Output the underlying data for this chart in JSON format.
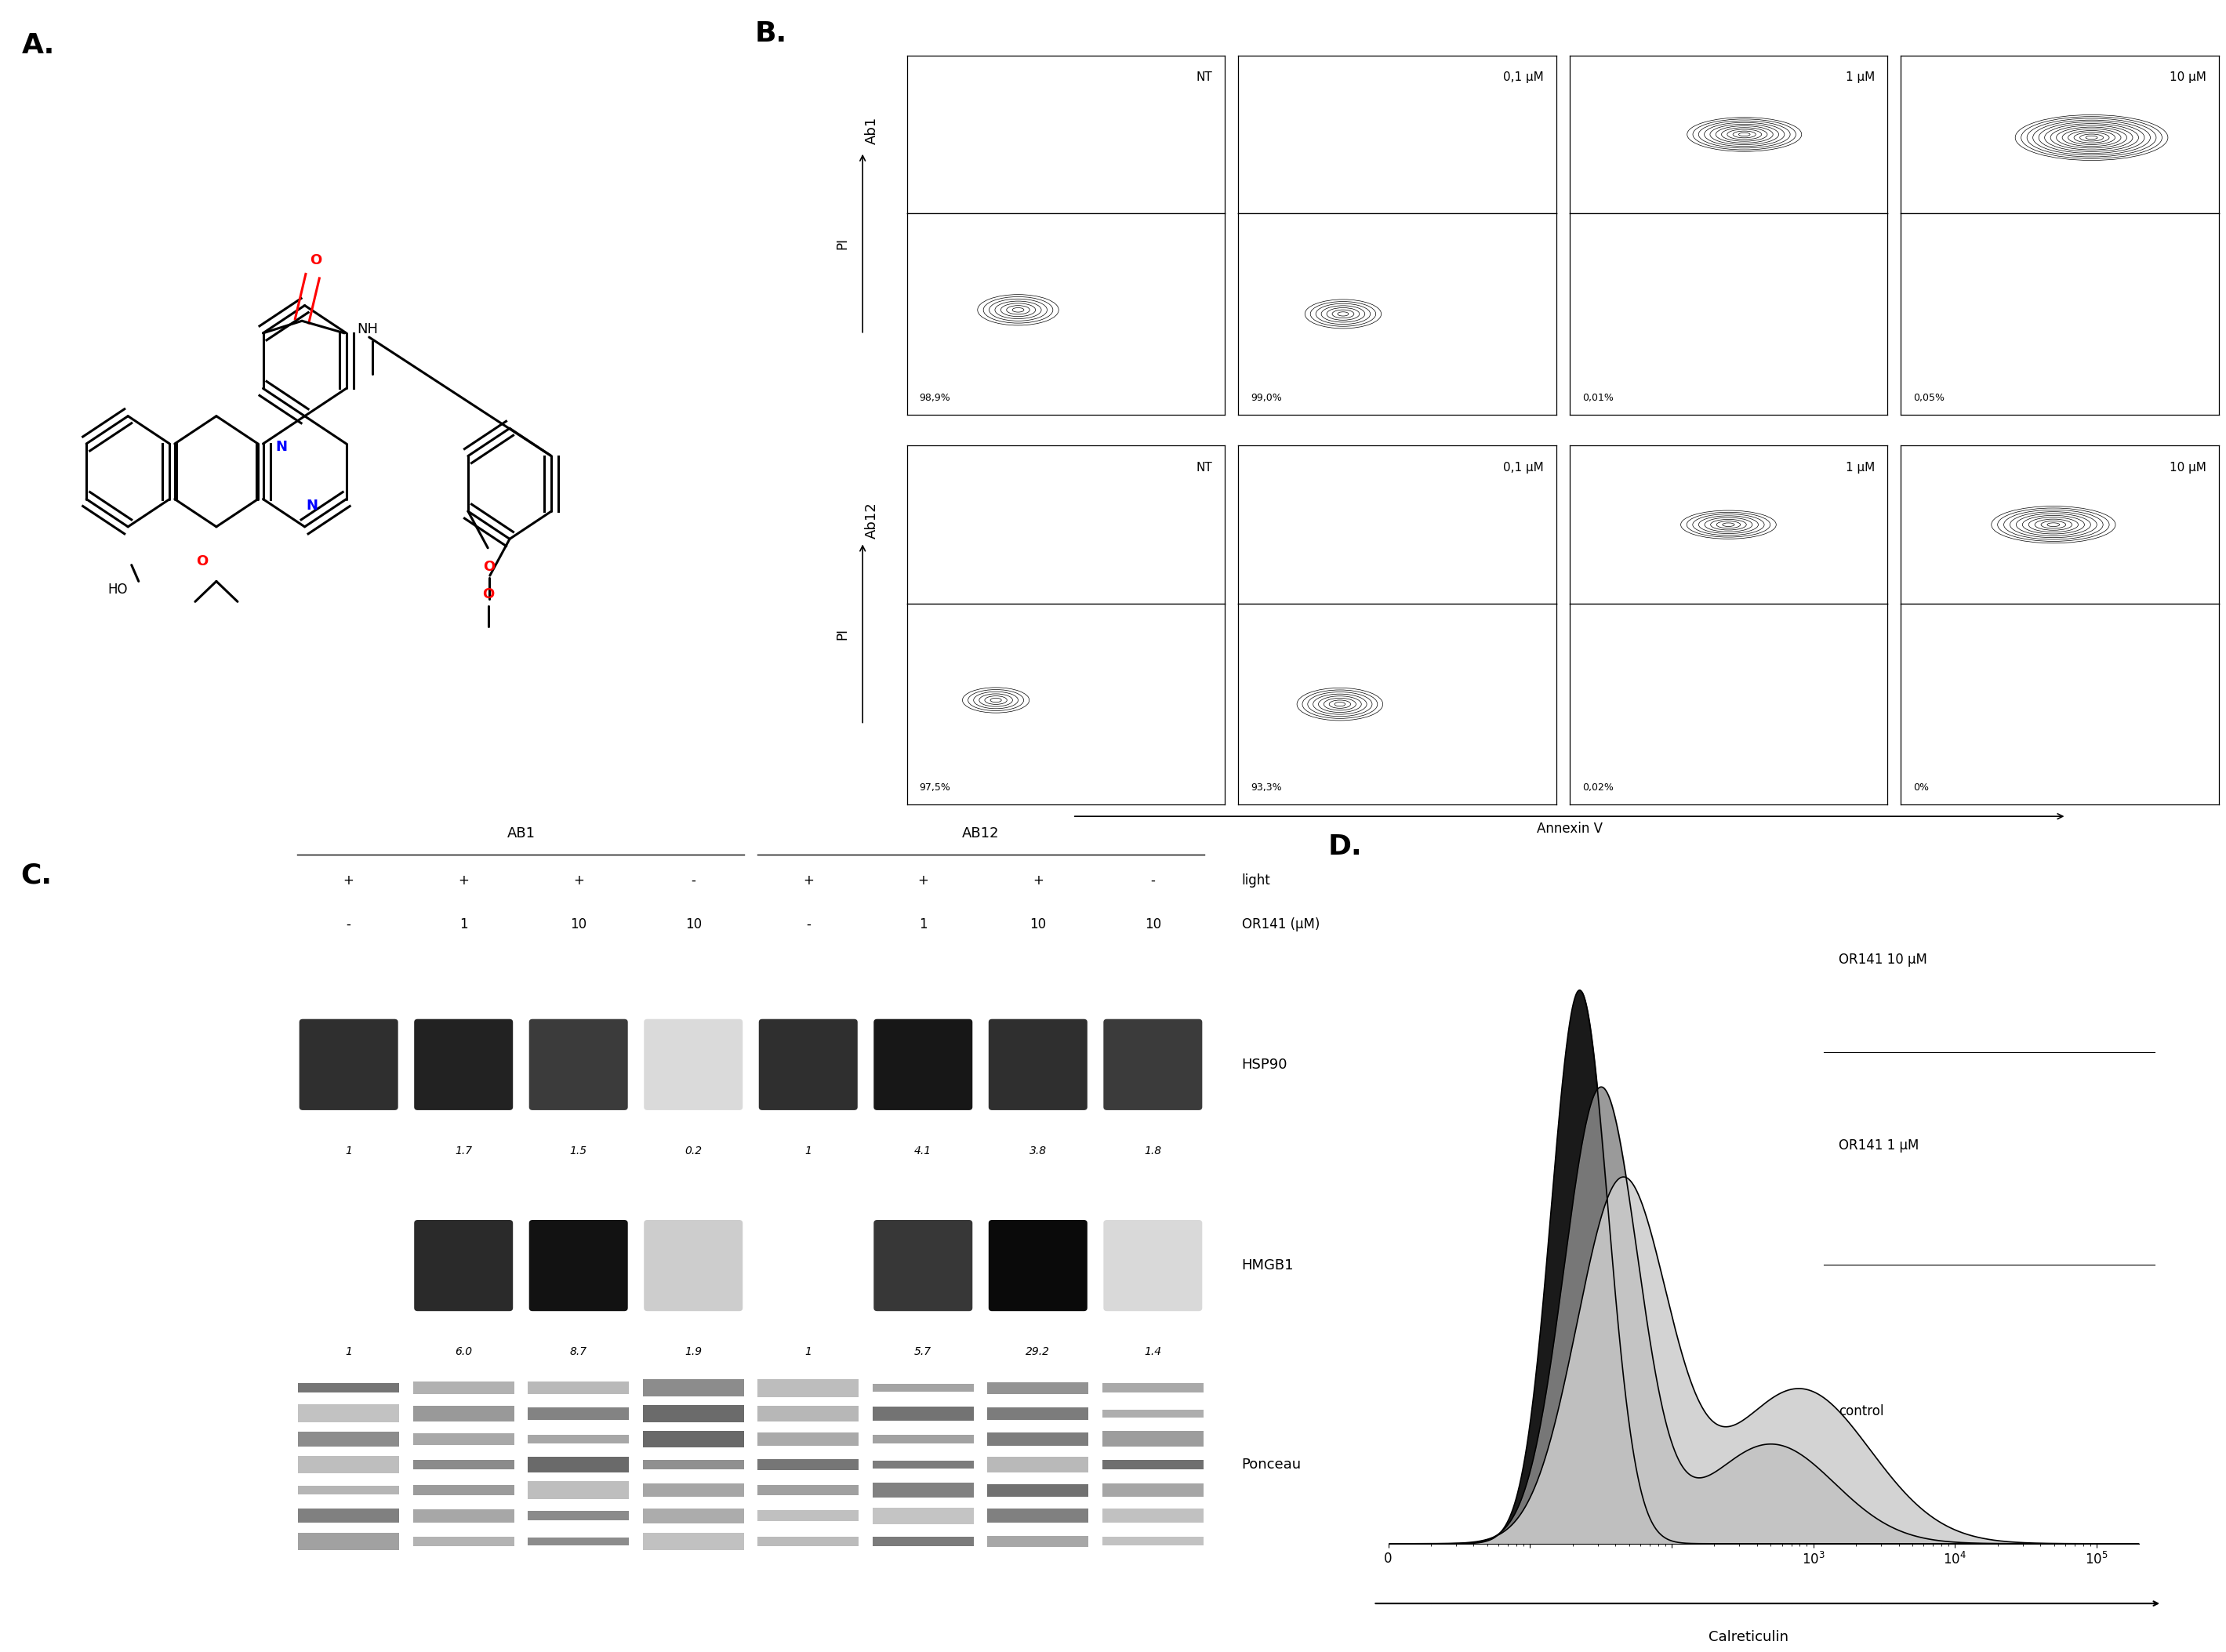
{
  "panel_label_fontsize": 26,
  "background_color": "#ffffff",
  "molecule_colors": {
    "N_color": "#0000ff",
    "O_color": "#ff0000",
    "bond_color": "#000000"
  },
  "flow_panel_B": {
    "row_labels": [
      "Ab1",
      "Ab12"
    ],
    "col_labels": [
      "NT",
      "0,1 μM",
      "1 μM",
      "10 μM"
    ],
    "percentages_Ab1": [
      "98,9%",
      "99,0%",
      "0,01%",
      "0,05%"
    ],
    "percentages_Ab12": [
      "97,5%",
      "93,3%",
      "0,02%",
      "0%"
    ],
    "y_axis_label": "PI",
    "x_axis_label": "Annexin V"
  },
  "western_blot_C": {
    "title_AB1": "AB1",
    "title_AB12": "AB12",
    "col_headers_light": [
      "+",
      "+",
      "+",
      "-",
      "+",
      "+",
      "+",
      "-"
    ],
    "col_headers_OR141": [
      "-",
      "1",
      "10",
      "10",
      "-",
      "1",
      "10",
      "10"
    ],
    "values_HSP90": [
      "1",
      "1.7",
      "1.5",
      "0.2",
      "1",
      "4.1",
      "3.8",
      "1.8"
    ],
    "values_HMGB1": [
      "1",
      "6.0",
      "8.7",
      "1.9",
      "1",
      "5.7",
      "29.2",
      "1.4"
    ],
    "side_label_light": "light",
    "side_label_OR141": "OR141 (μM)",
    "hsp90_intensities": [
      0.85,
      0.9,
      0.8,
      0.15,
      0.85,
      0.95,
      0.85,
      0.8
    ],
    "hmgb1_intensities": [
      0.05,
      0.85,
      0.95,
      0.2,
      0.05,
      0.8,
      0.98,
      0.15
    ]
  },
  "flow_panel_D": {
    "labels": [
      "OR141 10 μM",
      "OR141 1 μM",
      "control"
    ],
    "x_label": "Calreticulin"
  }
}
